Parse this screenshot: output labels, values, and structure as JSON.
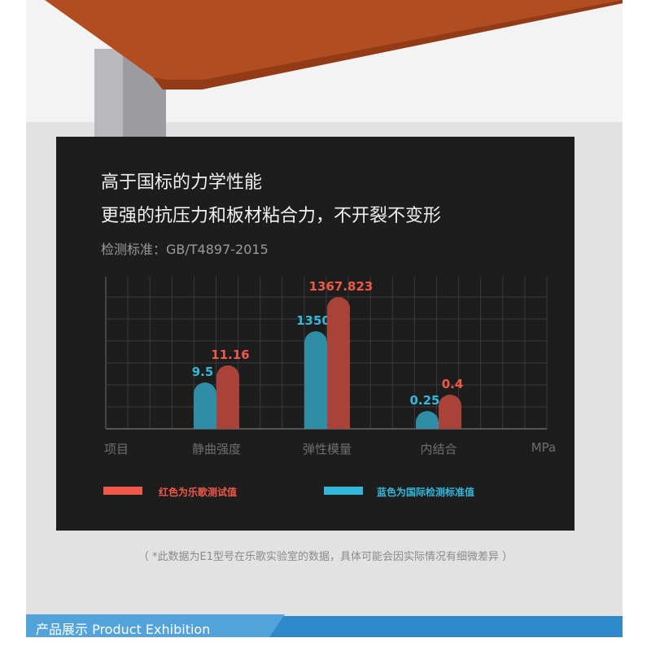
{
  "header": {
    "title_line1": "高于国标的力学性能",
    "title_line2": "更强的抗压力和板材粘合力，不开裂不变形",
    "standard": "检测标准：GB/T4897-2015"
  },
  "chart_data": {
    "type": "bar",
    "categories": [
      "静曲强度",
      "弹性模量",
      "内结合"
    ],
    "x_axis_first_label": "项目",
    "unit_label": "MPa",
    "grid": true,
    "series": [
      {
        "name": "蓝色为国际检测标准值",
        "color": "#2f8ea5",
        "label_color": "#33b8db",
        "values": [
          9.5,
          1350,
          0.25
        ],
        "labels": [
          "9.5",
          "1350",
          "0.25"
        ]
      },
      {
        "name": "红色为乐歌测试值",
        "color": "#a9433a",
        "label_color": "#f0584a",
        "values": [
          11.16,
          1367.823,
          0.4
        ],
        "labels": [
          "11.16",
          "1367.823",
          "0.4"
        ]
      }
    ],
    "legend": [
      {
        "text": "红色为乐歌测试值",
        "color": "#f0584a"
      },
      {
        "text": "蓝色为国际检测标准值",
        "color": "#33b8db"
      }
    ],
    "legend_placement": "bottom"
  },
  "note": "（ *此数据为E1型号在乐歌实验室的数据，具体可能会因实际情况有细微差异 ）",
  "footer": {
    "label": "产品展示  Product Exhibition",
    "color": "#2e89cb"
  }
}
